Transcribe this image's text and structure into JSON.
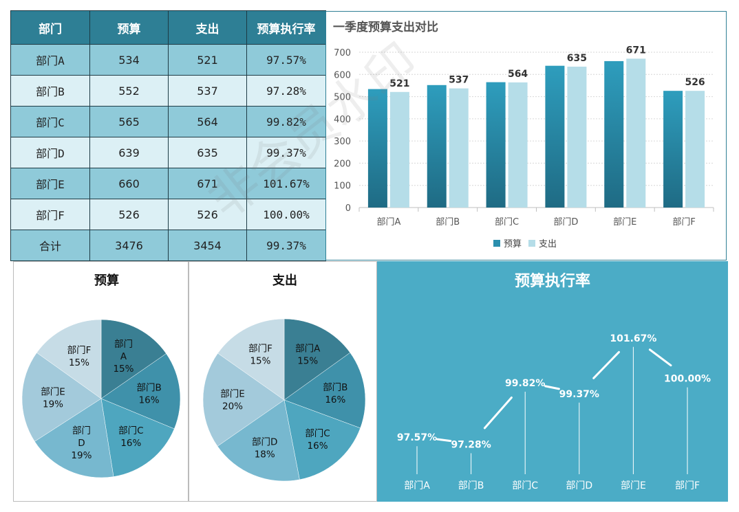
{
  "table": {
    "headers": [
      "部门",
      "预算",
      "支出",
      "预算执行率"
    ],
    "rows": [
      [
        "部门A",
        "534",
        "521",
        "97.57%"
      ],
      [
        "部门B",
        "552",
        "537",
        "97.28%"
      ],
      [
        "部门C",
        "565",
        "564",
        "99.82%"
      ],
      [
        "部门D",
        "639",
        "635",
        "99.37%"
      ],
      [
        "部门E",
        "660",
        "671",
        "101.67%"
      ],
      [
        "部门F",
        "526",
        "526",
        "100.00%"
      ],
      [
        "合计",
        "3476",
        "3454",
        "99.37%"
      ]
    ]
  },
  "watermark": "非会员水印",
  "colors": {
    "budget": "#2b8fae",
    "expense": "#b5dde8",
    "rate_bg": "#4bacc6",
    "pie_slices": [
      "#3a7f93",
      "#3f91aa",
      "#4ea6bf",
      "#77b8cf",
      "#a3cadb",
      "#c6dce6"
    ]
  },
  "chart_data": [
    {
      "type": "bar",
      "title": "一季度预算支出对比",
      "categories": [
        "部门A",
        "部门B",
        "部门C",
        "部门D",
        "部门E",
        "部门F"
      ],
      "series": [
        {
          "name": "预算",
          "values": [
            534,
            552,
            565,
            639,
            660,
            526
          ]
        },
        {
          "name": "支出",
          "values": [
            521,
            537,
            564,
            635,
            671,
            526
          ]
        }
      ],
      "data_labels": "支出",
      "ylim": [
        0,
        700
      ],
      "yticks": [
        0,
        100,
        200,
        300,
        400,
        500,
        600,
        700
      ],
      "grid": true,
      "legend": "bottom"
    },
    {
      "type": "pie",
      "title": "预算",
      "labels": [
        "部门A",
        "部门B",
        "部门C",
        "部门D",
        "部门E",
        "部门F"
      ],
      "display_labels": [
        [
          "部门",
          "A",
          "15%"
        ],
        [
          "部门B",
          "16%"
        ],
        [
          "部门C",
          "16%"
        ],
        [
          "部门",
          "D",
          "19%"
        ],
        [
          "部门E",
          "19%"
        ],
        [
          "部门F",
          "15%"
        ]
      ],
      "values": [
        534,
        552,
        565,
        639,
        660,
        526
      ],
      "percents": [
        "15%",
        "16%",
        "16%",
        "19%",
        "19%",
        "15%"
      ]
    },
    {
      "type": "pie",
      "title": "支出",
      "labels": [
        "部门A",
        "部门B",
        "部门C",
        "部门D",
        "部门E",
        "部门F"
      ],
      "display_labels": [
        [
          "部门A",
          "15%"
        ],
        [
          "部门B",
          "16%"
        ],
        [
          "部门C",
          "16%"
        ],
        [
          "部门D",
          "18%"
        ],
        [
          "部门E",
          "20%"
        ],
        [
          "部门F",
          "15%"
        ]
      ],
      "values": [
        521,
        537,
        564,
        635,
        671,
        526
      ],
      "percents": [
        "15%",
        "16%",
        "16%",
        "18%",
        "20%",
        "15%"
      ]
    },
    {
      "type": "line",
      "title": "预算执行率",
      "categories": [
        "部门A",
        "部门B",
        "部门C",
        "部门D",
        "部门E",
        "部门F"
      ],
      "values": [
        97.57,
        97.28,
        99.82,
        99.37,
        101.67,
        100.0
      ],
      "labels": [
        "97.57%",
        "97.28%",
        "99.82%",
        "99.37%",
        "101.67%",
        "100.00%"
      ],
      "ylim": [
        96.3,
        102.6
      ],
      "grid": false
    }
  ]
}
